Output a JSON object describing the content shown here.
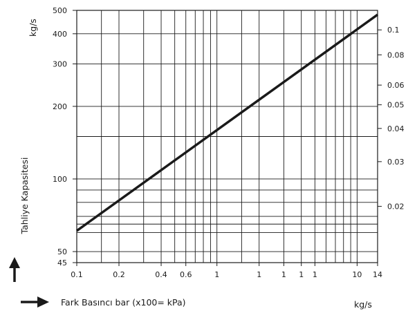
{
  "chart_data": {
    "type": "line",
    "x_scale": "log",
    "y_scale": "log",
    "xlim": [
      0.1,
      14
    ],
    "ylim": [
      45,
      500
    ],
    "grid": true,
    "x_tick_labels": [
      "0.1",
      "0.2",
      "0.4",
      "0.6",
      "1",
      "1",
      "1",
      "1",
      "1",
      "10",
      "14"
    ],
    "y_tick_labels": [
      "500",
      "400",
      "300",
      "200",
      "100",
      "50",
      "45"
    ],
    "y2_tick_labels": [
      "0.1",
      "0.08",
      "0.06",
      "0.05",
      "0.04",
      "0.03",
      "0.02"
    ],
    "xlabel": "Fark Basıncı bar (x100= kPa)",
    "ylabel": "Tahliye Kapasitesi",
    "y_unit": "kg/s",
    "x_unit": "kg/s",
    "series": [
      {
        "x": [
          0.1,
          14
        ],
        "y": [
          61,
          480
        ]
      }
    ]
  }
}
